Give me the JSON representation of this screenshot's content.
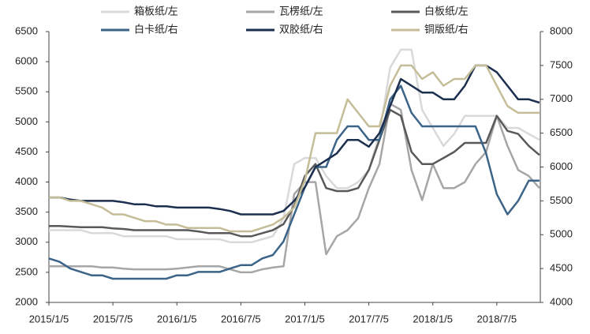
{
  "chart_data": {
    "type": "line",
    "x": [
      "2015/1/5",
      "2015/2/5",
      "2015/3/5",
      "2015/4/5",
      "2015/5/5",
      "2015/6/5",
      "2015/7/5",
      "2015/8/5",
      "2015/9/5",
      "2015/10/5",
      "2015/11/5",
      "2015/12/5",
      "2016/1/5",
      "2016/2/5",
      "2016/3/5",
      "2016/4/5",
      "2016/5/5",
      "2016/6/5",
      "2016/7/5",
      "2016/8/5",
      "2016/9/5",
      "2016/10/5",
      "2016/11/5",
      "2016/12/5",
      "2017/1/5",
      "2017/2/5",
      "2017/3/5",
      "2017/4/5",
      "2017/5/5",
      "2017/6/5",
      "2017/7/5",
      "2017/8/5",
      "2017/9/5",
      "2017/10/5",
      "2017/11/5",
      "2017/12/5",
      "2018/1/5",
      "2018/2/5",
      "2018/3/5",
      "2018/4/5",
      "2018/5/5",
      "2018/6/5",
      "2018/7/5",
      "2018/8/5",
      "2018/9/5",
      "2018/10/5",
      "2018/11/5"
    ],
    "xticks": [
      "2015/1/5",
      "2015/7/5",
      "2016/1/5",
      "2016/7/5",
      "2017/1/5",
      "2017/7/5",
      "2018/1/5",
      "2018/7/5"
    ],
    "ylim": [
      2000,
      6500
    ],
    "yticks": [
      2000,
      2500,
      3000,
      3500,
      4000,
      4500,
      5000,
      5500,
      6000,
      6500
    ],
    "y2lim": [
      4000,
      8000
    ],
    "y2ticks": [
      4000,
      4500,
      5000,
      5500,
      6000,
      6500,
      7000,
      7500,
      8000
    ],
    "series": [
      {
        "name": "箱板纸/左",
        "color": "#d9d9d9",
        "axis": "y",
        "values": [
          3200,
          3200,
          3200,
          3200,
          3150,
          3150,
          3150,
          3100,
          3100,
          3100,
          3100,
          3100,
          3050,
          3050,
          3050,
          3050,
          3050,
          3000,
          3000,
          3000,
          3050,
          3100,
          3400,
          4300,
          4400,
          4400,
          4100,
          3900,
          3900,
          4000,
          4200,
          4800,
          5900,
          6200,
          6200,
          5200,
          4900,
          4600,
          4800,
          5100,
          5100,
          5100,
          5100,
          4900,
          4900,
          4800,
          4700
        ]
      },
      {
        "name": "瓦楞纸/左",
        "color": "#a6a6a6",
        "axis": "y",
        "values": [
          2600,
          2600,
          2600,
          2600,
          2600,
          2580,
          2580,
          2560,
          2550,
          2550,
          2550,
          2550,
          2560,
          2580,
          2600,
          2600,
          2600,
          2550,
          2500,
          2500,
          2550,
          2580,
          2600,
          3800,
          4000,
          4000,
          2800,
          3100,
          3200,
          3400,
          3900,
          4300,
          5300,
          5200,
          4200,
          3700,
          4300,
          3900,
          3900,
          4000,
          4300,
          4500,
          5100,
          4600,
          4200,
          4100,
          3900
        ]
      },
      {
        "name": "白板纸/左",
        "color": "#595959",
        "axis": "y",
        "values": [
          3270,
          3270,
          3260,
          3250,
          3250,
          3250,
          3230,
          3220,
          3200,
          3200,
          3200,
          3200,
          3200,
          3200,
          3180,
          3150,
          3150,
          3150,
          3100,
          3100,
          3150,
          3200,
          3300,
          3600,
          4100,
          4300,
          3900,
          3850,
          3850,
          3900,
          4200,
          4700,
          5200,
          5100,
          4500,
          4300,
          4300,
          4400,
          4500,
          4650,
          4650,
          4650,
          5100,
          4850,
          4800,
          4600,
          4450
        ]
      },
      {
        "name": "白卡纸/右",
        "color": "#3b6488",
        "axis": "y2",
        "values": [
          4650,
          4600,
          4500,
          4450,
          4400,
          4400,
          4350,
          4350,
          4350,
          4350,
          4350,
          4350,
          4400,
          4400,
          4450,
          4450,
          4450,
          4500,
          4550,
          4550,
          4650,
          4700,
          4900,
          5300,
          5700,
          6000,
          6000,
          6400,
          6600,
          6600,
          6400,
          6400,
          7000,
          7200,
          6800,
          6600,
          6600,
          6600,
          6600,
          6600,
          6600,
          6200,
          5600,
          5300,
          5500,
          5800,
          5800
        ]
      },
      {
        "name": "双胶纸/右",
        "color": "#1c2f4f",
        "axis": "y2",
        "values": [
          5550,
          5550,
          5520,
          5500,
          5500,
          5500,
          5500,
          5480,
          5450,
          5450,
          5420,
          5420,
          5400,
          5400,
          5400,
          5400,
          5380,
          5350,
          5300,
          5300,
          5300,
          5300,
          5350,
          5500,
          5700,
          6000,
          6100,
          6200,
          6400,
          6400,
          6300,
          6500,
          6900,
          7300,
          7200,
          7100,
          7100,
          7000,
          7000,
          7200,
          7500,
          7500,
          7400,
          7200,
          7000,
          7000,
          6950
        ]
      },
      {
        "name": "铜版纸/右",
        "color": "#c4bd97",
        "axis": "y2",
        "values": [
          5550,
          5550,
          5500,
          5500,
          5450,
          5400,
          5300,
          5300,
          5250,
          5200,
          5200,
          5150,
          5150,
          5100,
          5100,
          5100,
          5100,
          5050,
          5050,
          5050,
          5100,
          5150,
          5250,
          5400,
          5800,
          6500,
          6500,
          6500,
          7000,
          6800,
          6600,
          6600,
          7200,
          7500,
          7500,
          7300,
          7400,
          7200,
          7300,
          7300,
          7500,
          7500,
          7200,
          6900,
          6800,
          6800,
          6800
        ]
      }
    ]
  }
}
